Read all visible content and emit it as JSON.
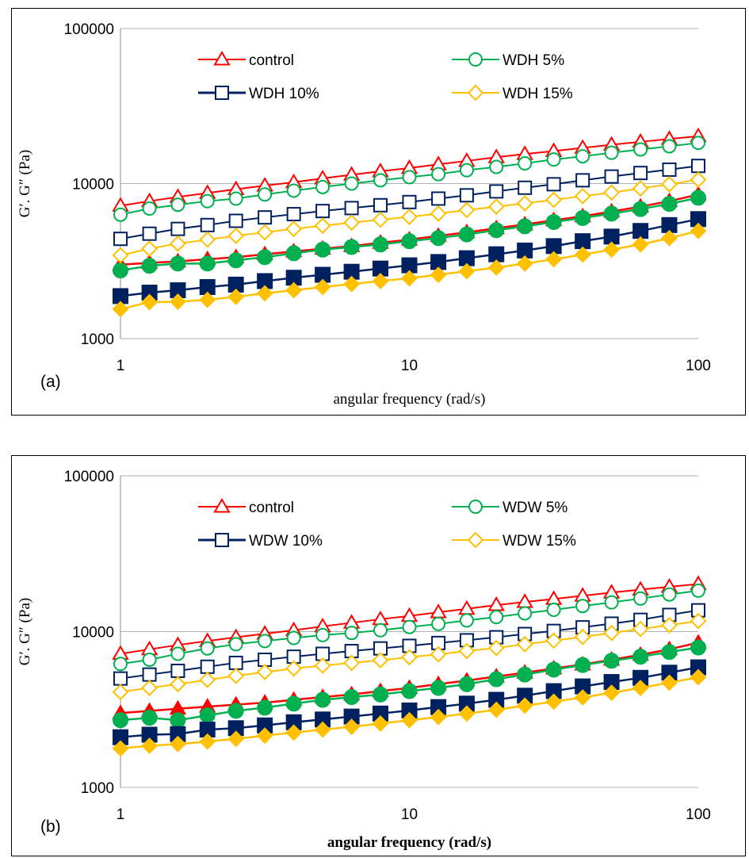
{
  "chart_data": [
    {
      "type": "line",
      "panel_label": "(a)",
      "xlabel": "angular frequency (rad/s)",
      "xlabel_bold": false,
      "ylabel": "G′. G″ (Pa)",
      "xscale": "log",
      "yscale": "log",
      "xlim": [
        1,
        100
      ],
      "ylim": [
        1000,
        100000
      ],
      "xticks": [
        "1",
        "10",
        "100"
      ],
      "yticks": [
        "1000",
        "10000",
        "100000"
      ],
      "grid": "horizontal",
      "legend": "top, two columns",
      "x": [
        1,
        1.26,
        1.58,
        2,
        2.51,
        3.16,
        3.98,
        5.01,
        6.31,
        7.94,
        10,
        12.6,
        15.8,
        20,
        25.1,
        31.6,
        39.8,
        50.1,
        63.1,
        79.4,
        100
      ],
      "series": [
        {
          "name": "control",
          "color": "#ff0000",
          "marker": "triangle",
          "fill": "open",
          "values": [
            7200,
            7700,
            8200,
            8700,
            9200,
            9700,
            10200,
            10800,
            11400,
            12000,
            12600,
            13300,
            14000,
            14800,
            15500,
            16200,
            17000,
            17800,
            18600,
            19400,
            20200
          ]
        },
        {
          "name": "",
          "color": "#ff0000",
          "marker": "triangle",
          "fill": "solid",
          "values": [
            3000,
            3080,
            3150,
            3250,
            3350,
            3500,
            3650,
            3800,
            3950,
            4150,
            4350,
            4600,
            4850,
            5150,
            5450,
            5800,
            6150,
            6600,
            7100,
            7700,
            8500
          ]
        },
        {
          "name": "WDH 5%",
          "color": "#00b050",
          "marker": "circle",
          "fill": "open",
          "values": [
            6300,
            6900,
            7300,
            7700,
            8000,
            8500,
            9000,
            9500,
            10000,
            10500,
            11000,
            11500,
            12200,
            12800,
            13500,
            14300,
            15000,
            15800,
            16600,
            17400,
            18300
          ]
        },
        {
          "name": "",
          "color": "#00b050",
          "marker": "circle",
          "fill": "solid",
          "values": [
            2750,
            2950,
            3050,
            3050,
            3200,
            3350,
            3550,
            3750,
            3900,
            4050,
            4250,
            4450,
            4700,
            5000,
            5300,
            5650,
            6000,
            6400,
            6850,
            7400,
            8100
          ]
        },
        {
          "name": "WDH 10%",
          "color": "#002060",
          "marker": "square",
          "fill": "open",
          "values": [
            4400,
            4750,
            5100,
            5400,
            5750,
            6050,
            6350,
            6650,
            6950,
            7250,
            7600,
            8000,
            8400,
            8900,
            9400,
            9900,
            10500,
            11100,
            11700,
            12300,
            13000
          ]
        },
        {
          "name": "",
          "color": "#002060",
          "marker": "square",
          "fill": "solid",
          "values": [
            1880,
            1980,
            2050,
            2150,
            2230,
            2350,
            2470,
            2580,
            2700,
            2830,
            2970,
            3120,
            3300,
            3500,
            3700,
            3950,
            4250,
            4550,
            4950,
            5400,
            5900
          ]
        },
        {
          "name": "WDH 15%",
          "color": "#ffc000",
          "marker": "diamond",
          "fill": "open",
          "values": [
            3450,
            3800,
            4100,
            4350,
            4600,
            4850,
            5100,
            5350,
            5600,
            5850,
            6100,
            6400,
            6750,
            7100,
            7450,
            7850,
            8300,
            8750,
            9300,
            9900,
            10600
          ]
        },
        {
          "name": "",
          "color": "#ffc000",
          "marker": "diamond",
          "fill": "solid",
          "values": [
            1550,
            1720,
            1730,
            1780,
            1860,
            1960,
            2050,
            2150,
            2250,
            2350,
            2450,
            2580,
            2720,
            2870,
            3050,
            3250,
            3480,
            3750,
            4050,
            4450,
            4950
          ]
        }
      ]
    },
    {
      "type": "line",
      "panel_label": "(b)",
      "xlabel": "angular frequency (rad/s)",
      "xlabel_bold": true,
      "ylabel": "G′. G″ (Pa)",
      "xscale": "log",
      "yscale": "log",
      "xlim": [
        1,
        100
      ],
      "ylim": [
        1000,
        100000
      ],
      "xticks": [
        "1",
        "10",
        "100"
      ],
      "yticks": [
        "1000",
        "10000",
        "100000"
      ],
      "grid": "horizontal",
      "legend": "top, two columns",
      "x": [
        1,
        1.26,
        1.58,
        2,
        2.51,
        3.16,
        3.98,
        5.01,
        6.31,
        7.94,
        10,
        12.6,
        15.8,
        20,
        25.1,
        31.6,
        39.8,
        50.1,
        63.1,
        79.4,
        100
      ],
      "series": [
        {
          "name": "control",
          "color": "#ff0000",
          "marker": "triangle",
          "fill": "open",
          "values": [
            7200,
            7700,
            8200,
            8700,
            9200,
            9700,
            10200,
            10800,
            11400,
            12000,
            12600,
            13300,
            14000,
            14800,
            15500,
            16200,
            17000,
            17800,
            18600,
            19400,
            20200
          ]
        },
        {
          "name": "",
          "color": "#ff0000",
          "marker": "triangle",
          "fill": "solid",
          "values": [
            3000,
            3100,
            3200,
            3300,
            3400,
            3500,
            3650,
            3800,
            3950,
            4150,
            4350,
            4600,
            4850,
            5150,
            5450,
            5800,
            6150,
            6600,
            7100,
            7700,
            8500
          ]
        },
        {
          "name": "WDW 5%",
          "color": "#00b050",
          "marker": "circle",
          "fill": "open",
          "values": [
            6200,
            6600,
            7200,
            7800,
            8300,
            8700,
            9100,
            9500,
            9800,
            10200,
            10700,
            11200,
            11800,
            12400,
            13100,
            13800,
            14600,
            15400,
            16300,
            17300,
            18300
          ]
        },
        {
          "name": "",
          "color": "#00b050",
          "marker": "circle",
          "fill": "solid",
          "values": [
            2700,
            2800,
            2700,
            2900,
            3100,
            3250,
            3450,
            3650,
            3800,
            3950,
            4150,
            4350,
            4600,
            4950,
            5300,
            5700,
            6100,
            6500,
            6900,
            7400,
            7900
          ]
        },
        {
          "name": "WDW 10%",
          "color": "#002060",
          "marker": "square",
          "fill": "open",
          "values": [
            5000,
            5300,
            5600,
            5950,
            6300,
            6600,
            6900,
            7200,
            7500,
            7800,
            8100,
            8450,
            8800,
            9200,
            9650,
            10100,
            10650,
            11250,
            11900,
            12800,
            13700
          ]
        },
        {
          "name": "",
          "color": "#002060",
          "marker": "square",
          "fill": "solid",
          "values": [
            2100,
            2180,
            2200,
            2350,
            2400,
            2500,
            2620,
            2730,
            2850,
            2980,
            3120,
            3280,
            3450,
            3650,
            3880,
            4150,
            4450,
            4750,
            5050,
            5450,
            5900
          ]
        },
        {
          "name": "WDW 15%",
          "color": "#ffc000",
          "marker": "diamond",
          "fill": "open",
          "values": [
            4100,
            4350,
            4600,
            4900,
            5200,
            5500,
            5800,
            6050,
            6300,
            6550,
            6850,
            7150,
            7500,
            7850,
            8300,
            8750,
            9250,
            9800,
            10400,
            11000,
            11700
          ]
        },
        {
          "name": "",
          "color": "#ffc000",
          "marker": "diamond",
          "fill": "solid",
          "values": [
            1780,
            1850,
            1900,
            1970,
            2050,
            2150,
            2250,
            2350,
            2450,
            2570,
            2700,
            2830,
            2980,
            3150,
            3350,
            3550,
            3780,
            4050,
            4350,
            4700,
            5100
          ]
        }
      ]
    }
  ]
}
